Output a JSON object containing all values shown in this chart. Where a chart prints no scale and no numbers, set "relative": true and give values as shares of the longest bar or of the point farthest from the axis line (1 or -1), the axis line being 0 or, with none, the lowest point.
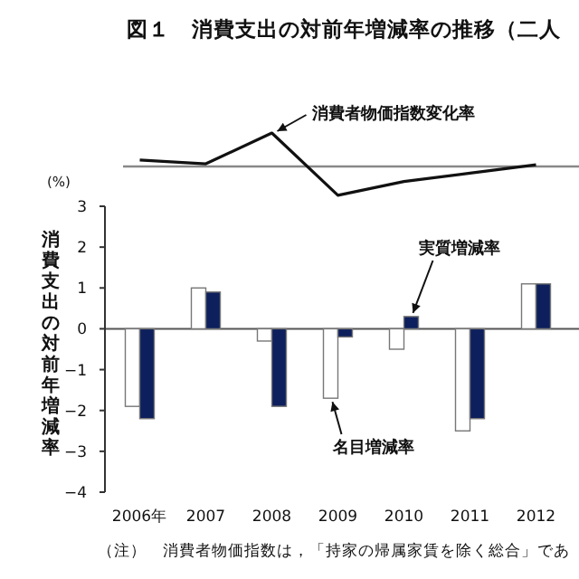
{
  "chart_data": [
    {
      "type": "line",
      "title": "図１　消費支出の対前年増減率の推移（二人",
      "relative": true,
      "categories": [
        null,
        null,
        null,
        null,
        null,
        null,
        null
      ],
      "line_style": "solid",
      "series": [
        {
          "name": "消費者物価指数変化率",
          "color": "#111111",
          "values": [
            0.19,
            0.08,
            1,
            -0.86,
            -0.45,
            -0.2,
            0.05
          ]
        }
      ]
    },
    {
      "type": "bar",
      "ylabel": "消費支出の対前年増減率",
      "categories": [
        "2006年",
        "2007",
        "2008",
        "2009",
        "2010",
        "2011",
        "2012"
      ],
      "ylim": [
        -4,
        3
      ],
      "yticks": [
        -4,
        -3,
        -2,
        -1,
        0,
        1,
        2,
        3
      ],
      "annotations": [
        "(%)",
        "（注）　消費者物価指数は，「持家の帰属家賃を除く総合」であ"
      ],
      "series": [
        {
          "name": "名目増減率",
          "color": "#ffffff",
          "values": [
            -1.9,
            1.0,
            -0.3,
            -1.7,
            -0.5,
            -2.5,
            1.1
          ]
        },
        {
          "name": "実質増減率",
          "color": "#0d1f5c",
          "values": [
            -2.2,
            0.9,
            -1.9,
            -0.2,
            0.3,
            -2.2,
            1.1
          ]
        }
      ]
    }
  ]
}
